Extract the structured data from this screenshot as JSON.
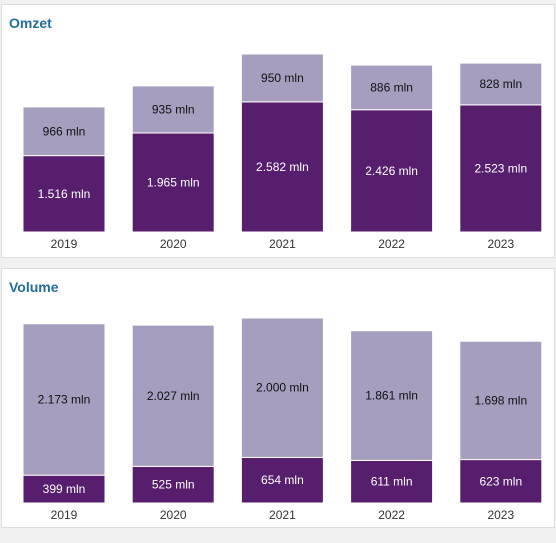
{
  "chart_data": [
    {
      "type": "bar",
      "stacked": true,
      "title": "Omzet",
      "categories": [
        "2019",
        "2020",
        "2021",
        "2022",
        "2023"
      ],
      "series": [
        {
          "values": [
            1516,
            1965,
            2582,
            2426,
            2523
          ],
          "labels": [
            "1.516 mln",
            "1.965 mln",
            "2.582 mln",
            "2.426 mln",
            "2.523 mln"
          ],
          "color": "#561e6d",
          "label_color": "#ffffff"
        },
        {
          "values": [
            966,
            935,
            950,
            886,
            828
          ],
          "labels": [
            "966 mln",
            "935 mln",
            "950 mln",
            "886 mln",
            "828 mln"
          ],
          "color": "#a59ebf",
          "label_color": "#111111"
        }
      ],
      "grid": false,
      "legend": "none"
    },
    {
      "type": "bar",
      "stacked": true,
      "title": "Volume",
      "categories": [
        "2019",
        "2020",
        "2021",
        "2022",
        "2023"
      ],
      "series": [
        {
          "values": [
            399,
            525,
            654,
            611,
            623
          ],
          "labels": [
            "399 mln",
            "525 mln",
            "654 mln",
            "611 mln",
            "623 mln"
          ],
          "color": "#561e6d",
          "label_color": "#ffffff"
        },
        {
          "values": [
            2173,
            2027,
            2000,
            1861,
            1698
          ],
          "labels": [
            "2.173 mln",
            "2.027 mln",
            "2.000 mln",
            "1.861 mln",
            "1.698 mln"
          ],
          "color": "#a59ebf",
          "label_color": "#111111"
        }
      ],
      "grid": false,
      "legend": "none"
    }
  ]
}
